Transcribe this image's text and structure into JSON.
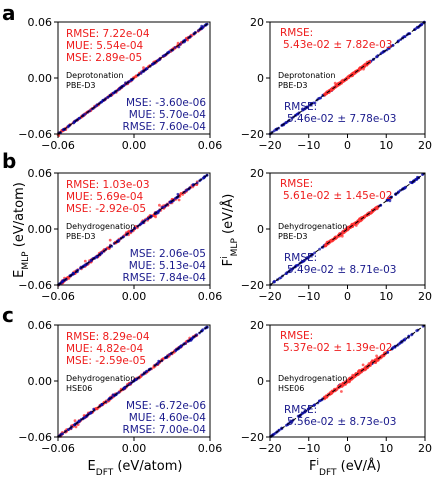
{
  "colors": {
    "red": "#ee1c1c",
    "red_scatter": "#ff3030",
    "blue": "#0a0aa8",
    "blue_text": "#1a1a8c",
    "diag": "#000000"
  },
  "labels": {
    "panel_a": "a",
    "panel_b": "b",
    "panel_c": "c",
    "energy_y_label": "E",
    "energy_y_sub": "MLP",
    "energy_y_unit": " (eV/atom)",
    "energy_x_label": "E",
    "energy_x_sub": "DFT",
    "energy_x_unit": " (eV/atom)",
    "force_y_label": "F",
    "force_y_sup": "i",
    "force_y_sub": "MLP",
    "force_y_unit": " (eV/Å)",
    "force_x_label": "F",
    "force_x_sup": "i",
    "force_x_sub": "DFT",
    "force_x_unit": " (eV/Å)"
  },
  "chart_data": [
    {
      "type": "scatter",
      "panel": "a",
      "quantity": "energy",
      "dataset": "Deprotonation",
      "method": "PBE-D3",
      "xlim": [
        -0.06,
        0.06
      ],
      "ylim": [
        -0.06,
        0.06
      ],
      "xticks": [
        "−0.06",
        "0.00",
        "0.06"
      ],
      "yticks": [
        "−0.06",
        "0.00",
        "0.06"
      ],
      "red_stats": [
        "RMSE: 7.22e-04",
        "MUE: 5.54e-04",
        "MSE: 2.89e-05"
      ],
      "blue_stats": [
        "MSE: -3.60e-06",
        "MUE: 5.70e-04",
        "RMSE: 7.60e-04"
      ],
      "series": [
        {
          "color": "red",
          "range": [
            -0.06,
            0.055
          ],
          "spread": 0.0012
        },
        {
          "color": "blue",
          "range": [
            -0.06,
            0.06
          ],
          "spread": 0.0008
        }
      ]
    },
    {
      "type": "scatter",
      "panel": "a",
      "quantity": "force",
      "dataset": "Deprotonation",
      "method": "PBE-D3",
      "xlim": [
        -20,
        20
      ],
      "ylim": [
        -20,
        20
      ],
      "xticks": [
        "−20",
        "−10",
        "0",
        "10",
        "20"
      ],
      "yticks": [
        "−20",
        "0",
        "20"
      ],
      "red_stats": [
        "RMSE:",
        "5.43e-02 ± 7.82e-03"
      ],
      "blue_stats": [
        "RMSE:",
        "5.46e-02 ± 7.78e-03"
      ],
      "series": [
        {
          "color": "blue",
          "range": [
            -20,
            20
          ],
          "spread": 0.3
        },
        {
          "color": "red",
          "range": [
            -6,
            6
          ],
          "spread": 0.6
        }
      ]
    },
    {
      "type": "scatter",
      "panel": "b",
      "quantity": "energy",
      "dataset": "Dehydrogenation",
      "method": "PBE-D3",
      "xlim": [
        -0.06,
        0.06
      ],
      "ylim": [
        -0.06,
        0.06
      ],
      "xticks": [
        "−0.06",
        "0.00",
        "0.06"
      ],
      "yticks": [
        "−0.06",
        "0.00",
        "0.06"
      ],
      "red_stats": [
        "RMSE: 1.03e-03",
        "MUE: 5.69e-04",
        "MSE: -2.92e-05"
      ],
      "blue_stats": [
        "MSE: 2.06e-05",
        "MUE: 5.13e-04",
        "RMSE: 7.84e-04"
      ],
      "series": [
        {
          "color": "red",
          "range": [
            -0.06,
            0.05
          ],
          "spread": 0.0025
        },
        {
          "color": "blue",
          "range": [
            -0.06,
            0.06
          ],
          "spread": 0.001
        }
      ]
    },
    {
      "type": "scatter",
      "panel": "b",
      "quantity": "force",
      "dataset": "Dehydrogenation",
      "method": "PBE-D3",
      "xlim": [
        -20,
        20
      ],
      "ylim": [
        -20,
        20
      ],
      "xticks": [
        "−20",
        "−10",
        "0",
        "10",
        "20"
      ],
      "yticks": [
        "−20",
        "0",
        "20"
      ],
      "red_stats": [
        "RMSE:",
        "5.61e-02 ± 1.45e-02"
      ],
      "blue_stats": [
        "RMSE:",
        "5.49e-02 ± 8.71e-03"
      ],
      "series": [
        {
          "color": "blue",
          "range": [
            -20,
            20
          ],
          "spread": 0.3
        },
        {
          "color": "red",
          "range": [
            -6,
            8
          ],
          "spread": 0.7
        }
      ]
    },
    {
      "type": "scatter",
      "panel": "c",
      "quantity": "energy",
      "dataset": "Dehydrogenation",
      "method": "HSE06",
      "xlim": [
        -0.06,
        0.06
      ],
      "ylim": [
        -0.06,
        0.06
      ],
      "xticks": [
        "−0.06",
        "0.00",
        "0.06"
      ],
      "yticks": [
        "−0.06",
        "0.00",
        "0.06"
      ],
      "red_stats": [
        "RMSE: 8.29e-04",
        "MUE: 4.82e-04",
        "MSE: -2.59e-05"
      ],
      "blue_stats": [
        "MSE: -6.72e-06",
        "MUE: 4.60e-04",
        "RMSE: 7.00e-04"
      ],
      "series": [
        {
          "color": "red",
          "range": [
            -0.06,
            0.05
          ],
          "spread": 0.0018
        },
        {
          "color": "blue",
          "range": [
            -0.06,
            0.06
          ],
          "spread": 0.0008
        }
      ]
    },
    {
      "type": "scatter",
      "panel": "c",
      "quantity": "force",
      "dataset": "Dehydrogenation",
      "method": "HSE06",
      "xlim": [
        -20,
        20
      ],
      "ylim": [
        -20,
        20
      ],
      "xticks": [
        "−20",
        "−10",
        "0",
        "10",
        "20"
      ],
      "yticks": [
        "−20",
        "0",
        "20"
      ],
      "red_stats": [
        "RMSE:",
        "5.37e-02 ± 1.39e-02"
      ],
      "blue_stats": [
        "RMSE:",
        "5.56e-02 ± 8.73e-03"
      ],
      "series": [
        {
          "color": "blue",
          "range": [
            -20,
            20
          ],
          "spread": 0.3
        },
        {
          "color": "red",
          "range": [
            -6,
            10
          ],
          "spread": 0.8
        }
      ]
    }
  ]
}
